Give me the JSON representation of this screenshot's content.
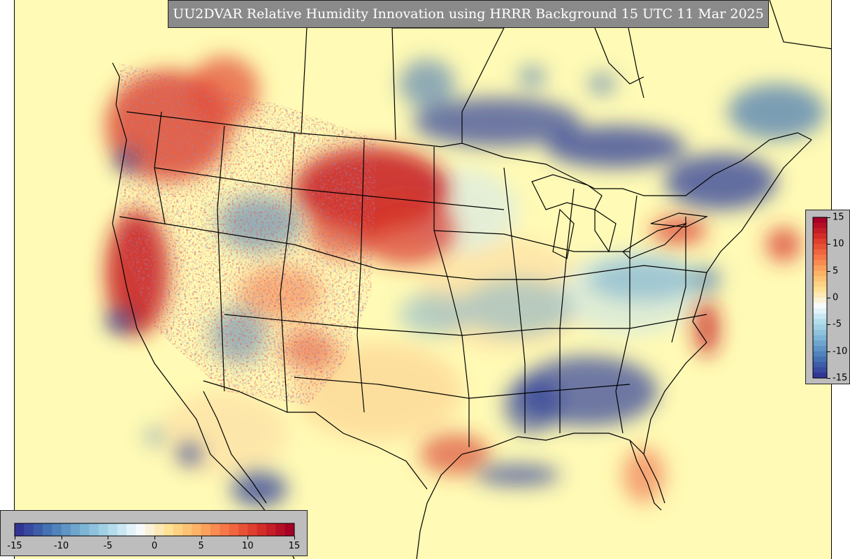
{
  "title": "UU2DVAR Relative Humidity Innovation using HRRR Background 15 UTC 11 Mar 2025",
  "colorbar": {
    "min": -15,
    "max": 15,
    "ticks": [
      "-15",
      "-10",
      "-5",
      "0",
      "5",
      "10",
      "15"
    ],
    "colors": [
      "#313695",
      "#4575b4",
      "#74add1",
      "#abd9e9",
      "#f7fbff",
      "#fee090",
      "#fdae61",
      "#f46d43",
      "#d73027",
      "#a50026"
    ]
  },
  "map": {
    "background_color": "#fffab5",
    "positive_color": "#c51b22",
    "negative_color": "#2c3f9a",
    "border_color": "#000000"
  }
}
